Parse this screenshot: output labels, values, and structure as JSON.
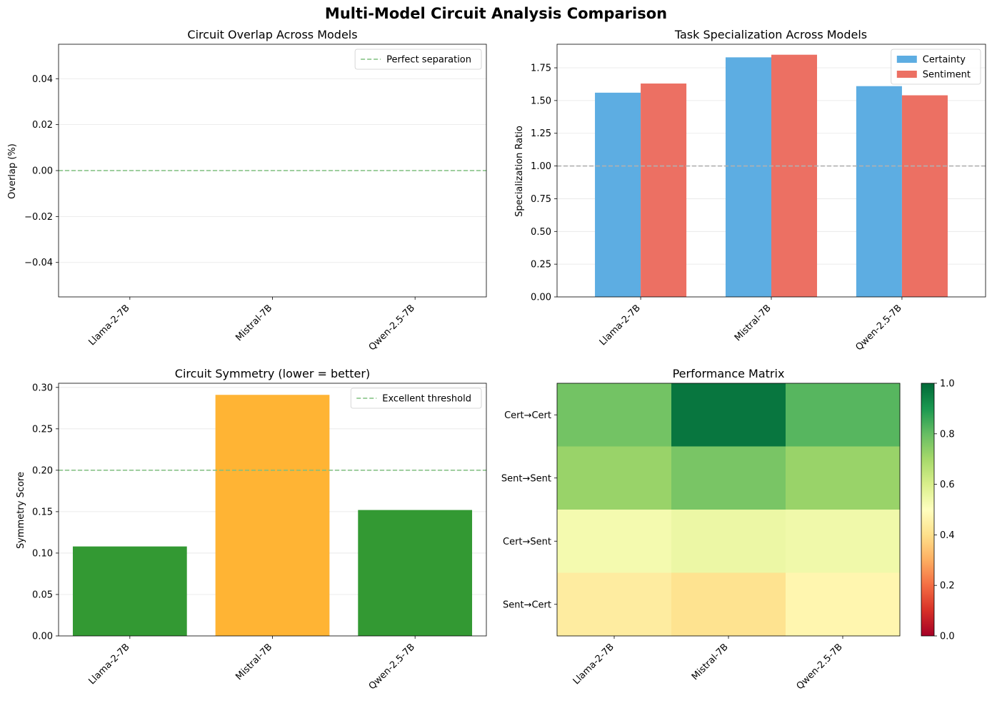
{
  "figure_title": "Multi-Model Circuit Analysis Comparison",
  "colors": {
    "certainty": "#5DADE2",
    "sentiment": "#EC7063",
    "good": "#339933",
    "warning": "#FFB434",
    "threshold": "#7FBF7F",
    "baseline": "#B0B0B0",
    "grid": "#E6E6E6"
  },
  "chart_data": [
    {
      "id": "overlap",
      "type": "line",
      "title": "Circuit Overlap Across Models",
      "ylabel": "Overlap (%)",
      "xlabel": "",
      "categories": [
        "Llama-2-7B",
        "Mistral-7B",
        "Qwen-2.5-7B"
      ],
      "series": [],
      "ylim": [
        -0.055,
        0.055
      ],
      "yticks": [
        -0.04,
        -0.02,
        0.0,
        0.02,
        0.04
      ],
      "ytick_labels": [
        "−0.04",
        "−0.02",
        "0.00",
        "0.02",
        "0.04"
      ],
      "reference_line": {
        "y": 0.0,
        "label": "Perfect separation",
        "style": "dashed"
      },
      "grid": "y",
      "legend": "upper right"
    },
    {
      "id": "specialization",
      "type": "bar",
      "title": "Task Specialization Across Models",
      "ylabel": "Specialization Ratio",
      "xlabel": "",
      "categories": [
        "Llama-2-7B",
        "Mistral-7B",
        "Qwen-2.5-7B"
      ],
      "series": [
        {
          "name": "Certainty",
          "values": [
            1.56,
            1.83,
            1.61
          ]
        },
        {
          "name": "Sentiment",
          "values": [
            1.63,
            1.85,
            1.54
          ]
        }
      ],
      "ylim": [
        0,
        1.93
      ],
      "yticks": [
        0.0,
        0.25,
        0.5,
        0.75,
        1.0,
        1.25,
        1.5,
        1.75
      ],
      "ytick_labels": [
        "0.00",
        "0.25",
        "0.50",
        "0.75",
        "1.00",
        "1.25",
        "1.50",
        "1.75"
      ],
      "reference_line": {
        "y": 1.0,
        "style": "dashed"
      },
      "grid": "y",
      "legend": "upper right"
    },
    {
      "id": "symmetry",
      "type": "bar",
      "title": "Circuit Symmetry (lower = better)",
      "ylabel": "Symmetry Score",
      "xlabel": "",
      "categories": [
        "Llama-2-7B",
        "Mistral-7B",
        "Qwen-2.5-7B"
      ],
      "values": [
        0.108,
        0.291,
        0.152
      ],
      "bar_status": [
        "good",
        "warning",
        "good"
      ],
      "ylim": [
        0,
        0.305
      ],
      "yticks": [
        0.0,
        0.05,
        0.1,
        0.15,
        0.2,
        0.25,
        0.3
      ],
      "ytick_labels": [
        "0.00",
        "0.05",
        "0.10",
        "0.15",
        "0.20",
        "0.25",
        "0.30"
      ],
      "reference_line": {
        "y": 0.2,
        "label": "Excellent threshold",
        "style": "dashed"
      },
      "grid": "y",
      "legend": "upper right"
    },
    {
      "id": "performance",
      "type": "heatmap",
      "title": "Performance Matrix",
      "x_categories": [
        "Llama-2-7B",
        "Mistral-7B",
        "Qwen-2.5-7B"
      ],
      "y_categories": [
        "Cert→Cert",
        "Sent→Sent",
        "Cert→Sent",
        "Sent→Cert"
      ],
      "values": [
        [
          0.78,
          0.97,
          0.82
        ],
        [
          0.72,
          0.77,
          0.72
        ],
        [
          0.53,
          0.55,
          0.54
        ],
        [
          0.44,
          0.41,
          0.47
        ]
      ],
      "colormap": "RdYlGn",
      "vmin": 0.0,
      "vmax": 1.0,
      "colorbar_ticks": [
        0.0,
        0.2,
        0.4,
        0.6,
        0.8,
        1.0
      ],
      "colorbar_tick_labels": [
        "0.0",
        "0.2",
        "0.4",
        "0.6",
        "0.8",
        "1.0"
      ]
    }
  ]
}
